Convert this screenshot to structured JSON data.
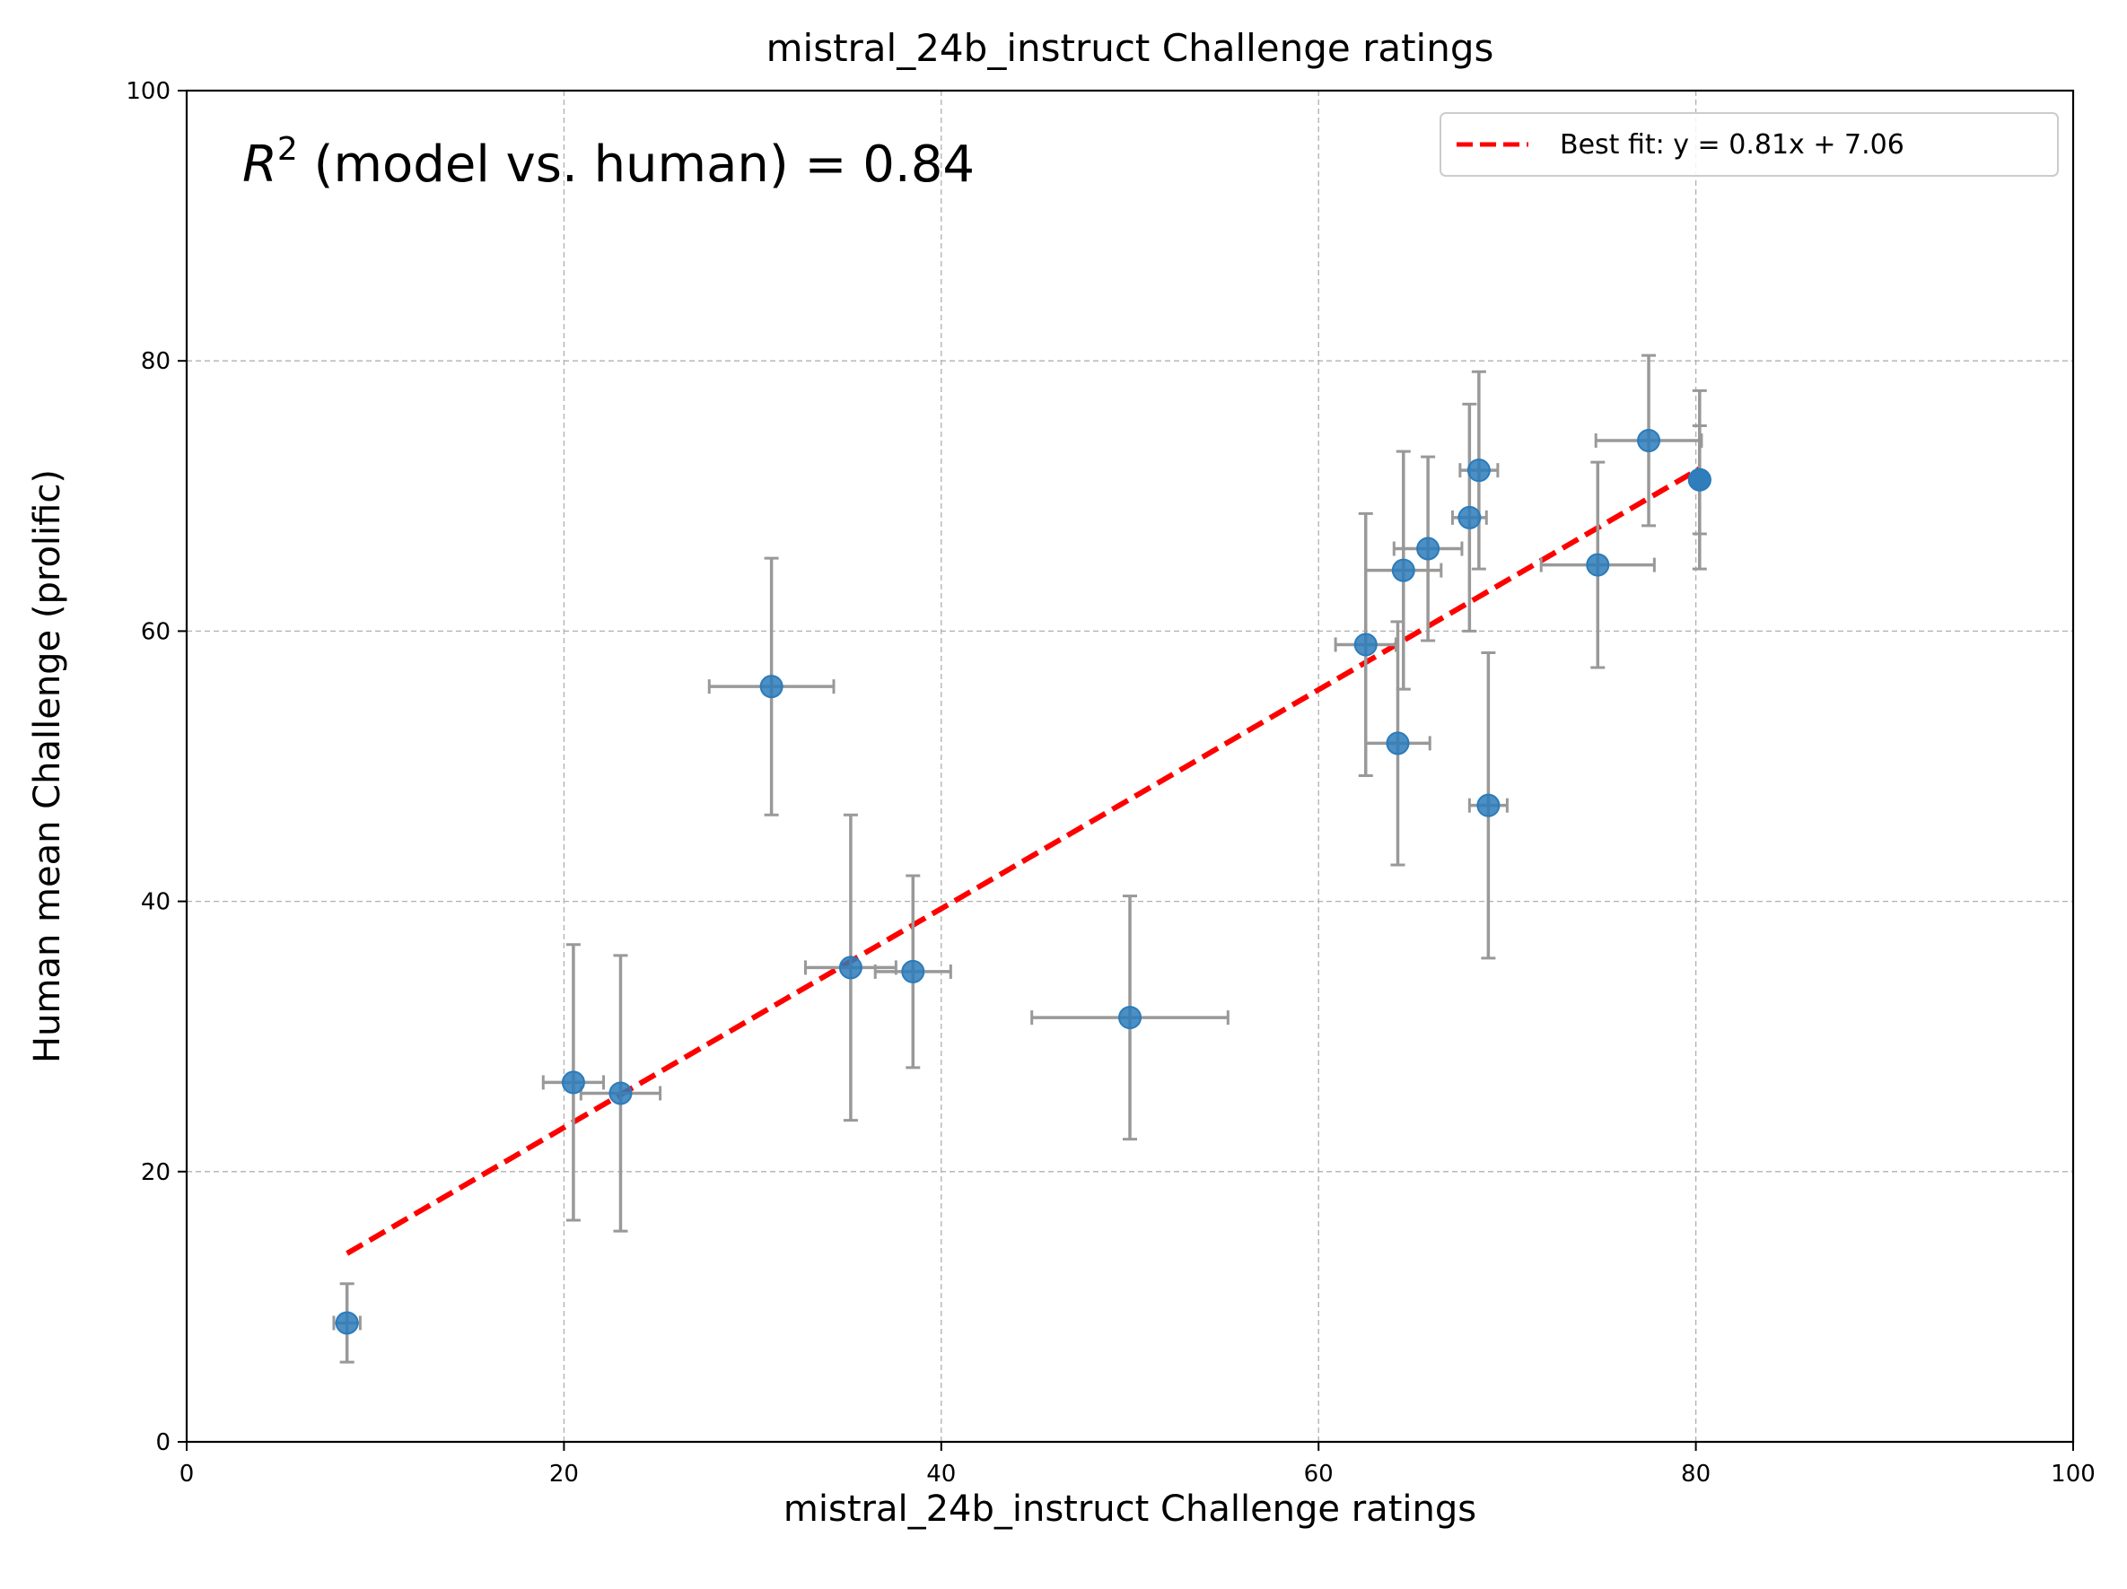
{
  "chart_data": {
    "type": "scatter",
    "title": "mistral_24b_instruct Challenge ratings",
    "xlabel": "mistral_24b_instruct Challenge ratings",
    "ylabel": "Human mean Challenge (prolific)",
    "xlim": [
      0,
      100
    ],
    "ylim": [
      0,
      100
    ],
    "xticks": [
      0,
      20,
      40,
      60,
      80,
      100
    ],
    "yticks": [
      0,
      20,
      40,
      60,
      80,
      100
    ],
    "grid": true,
    "annotation": {
      "prefix": "R",
      "exponent": "2",
      "text": " (model vs. human) = 0.84"
    },
    "legend": {
      "position": "top-right",
      "label": "Best fit: y = 0.81x + 7.06"
    },
    "fit": {
      "slope": 0.81,
      "intercept": 7.06,
      "x_range": [
        8.5,
        80.2
      ],
      "color": "#ff0000"
    },
    "point_color": "#2b7bba",
    "errorbar_color": "#999999",
    "points": [
      {
        "x": 8.5,
        "y": 8.8,
        "xerr": 0.7,
        "yerr": 2.9
      },
      {
        "x": 20.5,
        "y": 26.6,
        "xerr": 1.6,
        "yerr": 10.2
      },
      {
        "x": 23.0,
        "y": 25.8,
        "xerr": 2.1,
        "yerr": 10.2
      },
      {
        "x": 31.0,
        "y": 55.9,
        "xerr": 3.3,
        "yerr": 9.5
      },
      {
        "x": 35.2,
        "y": 35.1,
        "xerr": 2.4,
        "yerr": 11.3
      },
      {
        "x": 38.5,
        "y": 34.8,
        "xerr": 2.0,
        "yerr": 7.1
      },
      {
        "x": 50.0,
        "y": 31.4,
        "xerr": 5.2,
        "yerr": 9.0
      },
      {
        "x": 62.5,
        "y": 59.0,
        "xerr": 1.6,
        "yerr": 9.7
      },
      {
        "x": 64.2,
        "y": 51.7,
        "xerr": 1.7,
        "yerr": 9.0
      },
      {
        "x": 64.5,
        "y": 64.5,
        "xerr": 2.0,
        "yerr": 8.8
      },
      {
        "x": 65.8,
        "y": 66.1,
        "xerr": 1.8,
        "yerr": 6.8
      },
      {
        "x": 68.0,
        "y": 68.4,
        "xerr": 0.9,
        "yerr": 8.4
      },
      {
        "x": 68.5,
        "y": 71.9,
        "xerr": 1.0,
        "yerr": 7.3
      },
      {
        "x": 69.0,
        "y": 47.1,
        "xerr": 1.0,
        "yerr": 11.3
      },
      {
        "x": 74.8,
        "y": 64.9,
        "xerr": 3.0,
        "yerr": 7.6
      },
      {
        "x": 77.5,
        "y": 74.1,
        "xerr": 2.8,
        "yerr": 6.3
      },
      {
        "x": 80.2,
        "y": 71.2,
        "xerr": 0.2,
        "yerr": 6.6
      },
      {
        "x": 80.2,
        "y": 71.2,
        "xerr": 0.2,
        "yerr": 4.0
      }
    ]
  }
}
